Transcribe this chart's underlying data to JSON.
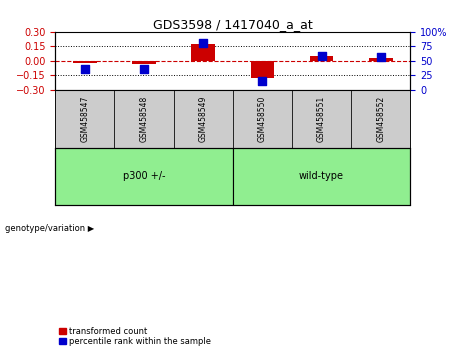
{
  "title": "GDS3598 / 1417040_a_at",
  "samples": [
    "GSM458547",
    "GSM458548",
    "GSM458549",
    "GSM458550",
    "GSM458551",
    "GSM458552"
  ],
  "red_values": [
    -0.02,
    -0.03,
    0.17,
    -0.18,
    0.05,
    0.03
  ],
  "blue_values": [
    35,
    35,
    80,
    15,
    58,
    57
  ],
  "ylim_left": [
    -0.3,
    0.3
  ],
  "ylim_right": [
    0,
    100
  ],
  "yticks_left": [
    -0.3,
    -0.15,
    0,
    0.15,
    0.3
  ],
  "yticks_right": [
    0,
    25,
    50,
    75,
    100
  ],
  "hline_y": 0.0,
  "dotted_lines": [
    -0.15,
    0.15
  ],
  "group1_label": "p300 +/-",
  "group2_label": "wild-type",
  "group_label_prefix": "genotype/variation",
  "legend_red": "transformed count",
  "legend_blue": "percentile rank within the sample",
  "red_color": "#cc0000",
  "blue_color": "#0000cc",
  "bar_width": 0.4,
  "background_color": "#ffffff",
  "plot_bg": "#ffffff",
  "tick_color_left": "#cc0000",
  "tick_color_right": "#0000cc",
  "tick_fontsize": 7,
  "title_fontsize": 9,
  "sample_fontsize": 5.5,
  "group_fontsize": 7,
  "group_bg_color": "#cccccc",
  "group_box_color": "#90EE90",
  "legend_fontsize": 6
}
